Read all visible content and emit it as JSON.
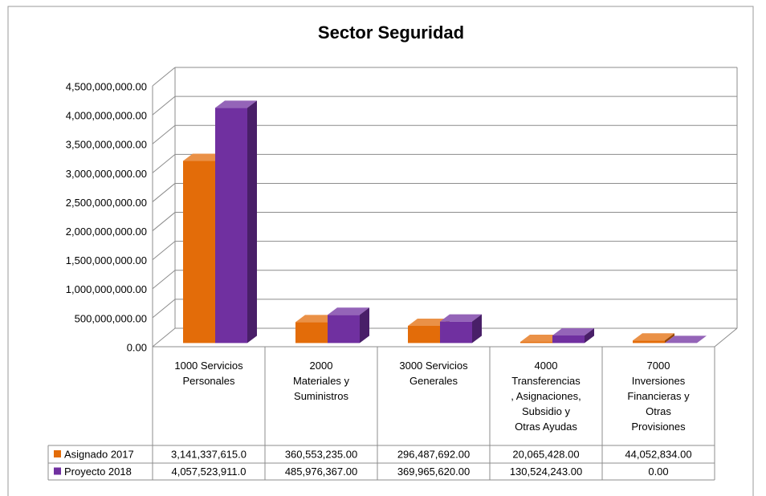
{
  "chart_data": {
    "type": "bar3d",
    "title": "Sector Seguridad",
    "categories": [
      "1000 Servicios\nPersonales",
      "2000\nMateriales y\nSuministros",
      "3000 Servicios\nGenerales",
      "4000\nTransferencias\n, Asignaciones,\nSubsidio y\nOtras Ayudas",
      "7000\nInversiones\nFinancieras y\nOtras\nProvisiones"
    ],
    "series": [
      {
        "name": "Asignado 2017",
        "color": "#e36c09",
        "values": [
          3141337615,
          360553235,
          296487692,
          20065428,
          44052834
        ],
        "value_labels": [
          "3,141,337,615.0",
          "360,553,235.00",
          "296,487,692.00",
          "20,065,428.00",
          "44,052,834.00"
        ]
      },
      {
        "name": "Proyecto 2018",
        "color": "#7030a0",
        "values": [
          4057523911,
          485976367,
          369965620,
          130524243,
          0
        ],
        "value_labels": [
          "4,057,523,911.0",
          "485,976,367.00",
          "369,965,620.00",
          "130,524,243.00",
          "0.00"
        ]
      }
    ],
    "ylim": [
      0,
      4500000000
    ],
    "yticks": [
      {
        "value": 0,
        "label": "0.00"
      },
      {
        "value": 500000000,
        "label": "500,000,000.00"
      },
      {
        "value": 1000000000,
        "label": "1,000,000,000.00"
      },
      {
        "value": 1500000000,
        "label": "1,500,000,000.00"
      },
      {
        "value": 2000000000,
        "label": "2,000,000,000.00"
      },
      {
        "value": 2500000000,
        "label": "2,500,000,000.00"
      },
      {
        "value": 3000000000,
        "label": "3,000,000,000.00"
      },
      {
        "value": 3500000000,
        "label": "3,500,000,000.00"
      },
      {
        "value": 4000000000,
        "label": "4,000,000,000.00"
      },
      {
        "value": 4500000000,
        "label": "4,500,000,000.00"
      }
    ],
    "grid": true
  }
}
